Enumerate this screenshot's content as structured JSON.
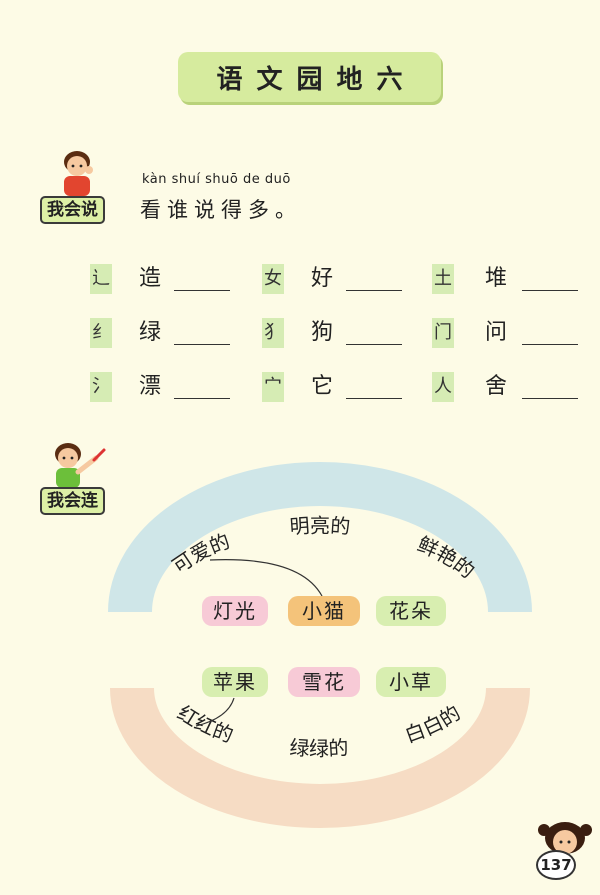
{
  "title": "语文园地六",
  "section1": {
    "badge": "我会说",
    "pinyin": "kàn shuí shuō de duō",
    "heading": "看谁说得多。",
    "rows": [
      [
        {
          "radical": "辶",
          "char": "造"
        },
        {
          "radical": "女",
          "char": "好"
        },
        {
          "radical": "土",
          "char": "堆"
        }
      ],
      [
        {
          "radical": "纟",
          "char": "绿"
        },
        {
          "radical": "犭",
          "char": "狗"
        },
        {
          "radical": "门",
          "char": "问"
        }
      ],
      [
        {
          "radical": "氵",
          "char": "漂"
        },
        {
          "radical": "宀",
          "char": "它"
        },
        {
          "radical": "人",
          "char": "舍"
        }
      ]
    ]
  },
  "section2": {
    "badge": "我会连",
    "top_arc": {
      "left": "可爱的",
      "middle": "明亮的",
      "right": "鲜艳的"
    },
    "bottom_arc": {
      "left": "红红的",
      "middle": "绿绿的",
      "right": "白白的"
    },
    "row1": [
      "灯光",
      "小猫",
      "花朵"
    ],
    "row2": [
      "苹果",
      "雪花",
      "小草"
    ],
    "colors": {
      "pink": "#f7cad6",
      "orange": "#f4c37a",
      "green": "#d8eeb0",
      "arc_blue": "#cfe6e8",
      "arc_peach": "#f6dcc4"
    }
  },
  "page_number": "137"
}
